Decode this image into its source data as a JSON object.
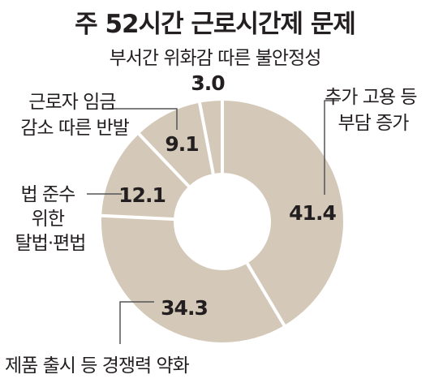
{
  "chart_data": {
    "type": "pie",
    "title": "주 52시간 근로시간제 문제",
    "center_label": "%",
    "slices": [
      {
        "label_lines": [
          "추가 고용 등",
          "부담 증가"
        ],
        "value": 41.4,
        "value_text": "41.4"
      },
      {
        "label_lines": [
          "제품 출시 등 경쟁력 약화"
        ],
        "value": 34.3,
        "value_text": "34.3"
      },
      {
        "label_lines": [
          "법 준수",
          "위한",
          "탈법·편법"
        ],
        "value": 12.1,
        "value_text": "12.1"
      },
      {
        "label_lines": [
          "근로자 임금",
          "감소 따른 반발"
        ],
        "value": 9.1,
        "value_text": "9.1"
      },
      {
        "label_lines": [
          "부서간 위화감 따른 불안정성"
        ],
        "value": 3.0,
        "value_text": "3.0"
      }
    ],
    "colors": {
      "ring": "#d4c8b8",
      "separator": "#ffffff",
      "leader": "#555555",
      "text": "#231f20"
    }
  }
}
